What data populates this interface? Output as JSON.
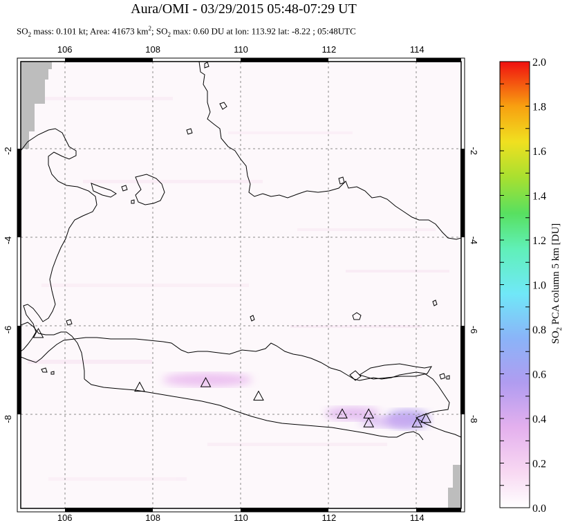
{
  "header": {
    "title": "Aura/OMI - 03/29/2015 05:48-07:29 UT",
    "subtitle_parts": {
      "so2_prefix": "SO",
      "so2_sub": "2",
      "mass": " mass: 0.101 kt; Area: 41673 km",
      "area_sup": "2",
      "so2_2_prefix": "; SO",
      "so2_2_sub": "2",
      "rest": " max: 0.60 DU at lon: 113.92 lat: -8.22 ; 05:48UTC"
    }
  },
  "map": {
    "lon_range": [
      105,
      115
    ],
    "lat_range": [
      -10,
      0
    ],
    "lon_ticks": [
      "106",
      "108",
      "110",
      "112",
      "114"
    ],
    "lat_ticks": [
      "-2",
      "-4",
      "-6",
      "-8"
    ],
    "lon_tick_values": [
      106,
      108,
      110,
      112,
      114
    ],
    "lat_tick_values": [
      -2,
      -4,
      -6,
      -8
    ],
    "volcanoes": [
      {
        "lon": 105.4,
        "lat": -6.1
      },
      {
        "lon": 107.7,
        "lat": -7.3
      },
      {
        "lon": 109.2,
        "lat": -7.2
      },
      {
        "lon": 110.4,
        "lat": -7.5
      },
      {
        "lon": 112.3,
        "lat": -7.9
      },
      {
        "lon": 112.9,
        "lat": -7.9
      },
      {
        "lon": 112.9,
        "lat": -8.1
      },
      {
        "lon": 114.0,
        "lat": -8.1
      },
      {
        "lon": 114.2,
        "lat": -8.0
      }
    ],
    "so2_patches": [
      {
        "lon": 109.2,
        "lat": -7.1,
        "value": 0.35
      },
      {
        "lon": 113.9,
        "lat": -8.2,
        "value": 0.6
      },
      {
        "lon": 112.8,
        "lat": -8.1,
        "value": 0.4
      }
    ]
  },
  "colorbar": {
    "title_prefix": "SO",
    "title_sub": "2",
    "title_rest": " PCA column 5 km [DU]",
    "labels": [
      "2.0",
      "1.8",
      "1.6",
      "1.4",
      "1.2",
      "1.0",
      "0.8",
      "0.6",
      "0.4",
      "0.2",
      "0.0"
    ],
    "min": 0.0,
    "max": 2.0,
    "colors": [
      "#ffffff",
      "#f5c8ef",
      "#d9a0ee",
      "#a89af2",
      "#8ac0f8",
      "#70f0f8",
      "#60f0b0",
      "#60e050",
      "#b0e030",
      "#f0e020",
      "#f8b010",
      "#f86010",
      "#f01010"
    ]
  }
}
